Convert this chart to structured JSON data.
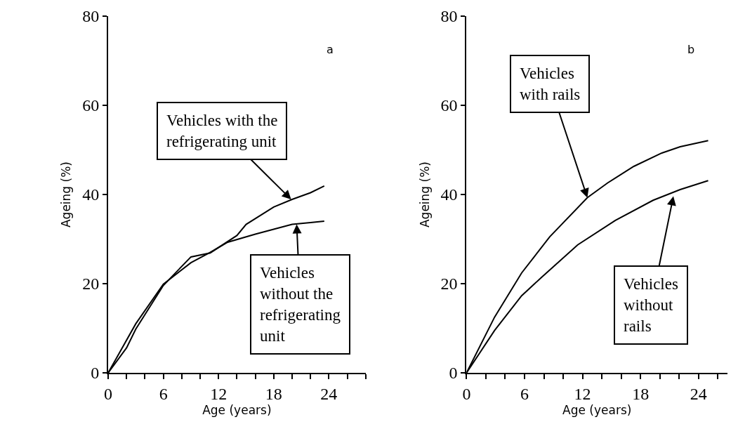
{
  "chart_data": [
    {
      "type": "line",
      "xlabel": "Age (years)",
      "ylabel": "Ageing (%)",
      "xlim": [
        0,
        28
      ],
      "ylim": [
        0,
        80
      ],
      "xticks": [
        0,
        {
          "value": 2,
          "label": null
        },
        {
          "value": 4,
          "label": null
        },
        6,
        {
          "value": 8,
          "label": null
        },
        {
          "value": 10,
          "label": null
        },
        12,
        {
          "value": 14,
          "label": null
        },
        {
          "value": 16,
          "label": null
        },
        18,
        {
          "value": 20,
          "label": null
        },
        {
          "value": 22,
          "label": null
        },
        24,
        {
          "value": 26,
          "label": null
        },
        {
          "value": 28,
          "label": null
        }
      ],
      "yticks": [
        0,
        20,
        40,
        60,
        80
      ],
      "marker": "none",
      "line_style": "solid",
      "series": [
        {
          "color": "#000000",
          "x": [
            0,
            2,
            3,
            6,
            9,
            11.1,
            14,
            15,
            18,
            20,
            22,
            23.5
          ],
          "values": [
            0,
            5.6,
            9.8,
            19.6,
            26,
            26.9,
            30.8,
            33.3,
            37.2,
            38.9,
            40.4,
            41.9
          ]
        },
        {
          "color": "#000000",
          "x": [
            0,
            3,
            6,
            9,
            11,
            13,
            16,
            18,
            20,
            22,
            23.5
          ],
          "values": [
            0,
            11,
            19.9,
            24.7,
            26.9,
            29.3,
            31.1,
            32.2,
            33.3,
            33.7,
            34
          ]
        }
      ],
      "annotations": [
        "a",
        {
          "text": "Vehicles with the\nrefrigerating unit",
          "x": 19.9,
          "y": 38.9
        },
        {
          "text": "Vehicles\nwithout the\nrefrigerating\nunit",
          "x": 20.5,
          "y": 33.3
        }
      ]
    },
    {
      "type": "line",
      "xlabel": "Age (years)",
      "ylabel": "Ageing (%)",
      "xlim": [
        0,
        27
      ],
      "ylim": [
        0,
        80
      ],
      "xticks": [
        0,
        {
          "value": 2,
          "label": null
        },
        {
          "value": 4,
          "label": null
        },
        6,
        {
          "value": 8,
          "label": null
        },
        {
          "value": 10,
          "label": null
        },
        12,
        {
          "value": 14,
          "label": null
        },
        {
          "value": 16,
          "label": null
        },
        18,
        {
          "value": 20,
          "label": null
        },
        {
          "value": 22,
          "label": null
        },
        24,
        {
          "value": 26,
          "label": null
        }
      ],
      "yticks": [
        0,
        20,
        40,
        60,
        80
      ],
      "marker": "none",
      "line_style": "solid",
      "series": [
        {
          "color": "#000000",
          "x": [
            0,
            2.9,
            5.7,
            8.6,
            12.5,
            14.6,
            17.3,
            20.2,
            22.1,
            25
          ],
          "values": [
            0,
            12.5,
            22.4,
            30.5,
            39.3,
            42.6,
            46.3,
            49.3,
            50.7,
            52.1
          ]
        },
        {
          "color": "#000000",
          "x": [
            0,
            2.9,
            5.7,
            7.8,
            11.5,
            15.4,
            19.3,
            22.1,
            25
          ],
          "values": [
            0,
            9.5,
            17.3,
            21.5,
            28.7,
            34.2,
            38.7,
            41.1,
            43.1
          ]
        }
      ],
      "annotations": [
        "b",
        {
          "text": "Vehicles\nwith rails",
          "x": 12.5,
          "y": 39.3
        },
        {
          "text": "Vehicles\nwithout\nrails",
          "x": 21.4,
          "y": 39.6
        }
      ]
    }
  ]
}
